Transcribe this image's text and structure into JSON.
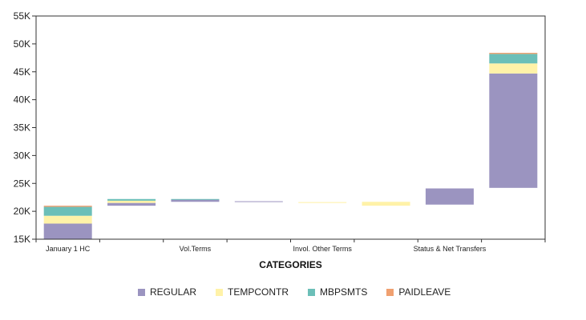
{
  "chart_data": {
    "type": "bar",
    "subtype": "waterfall-stacked",
    "xlabel": "CATEGORIES",
    "ylabel": "",
    "ylim": [
      15000,
      55000
    ],
    "yticks": [
      "15K",
      "20K",
      "25K",
      "30K",
      "35K",
      "40K",
      "45K",
      "50K",
      "55K"
    ],
    "ytick_values": [
      15000,
      20000,
      25000,
      30000,
      35000,
      40000,
      45000,
      50000,
      55000
    ],
    "grid": false,
    "legend_position": "bottom",
    "x_tick_labels": [
      {
        "text": "January 1 HC",
        "at_category": 0
      },
      {
        "text": "Vol.Terms",
        "at_category": 2
      },
      {
        "text": "Invol. Other Terms",
        "at_category": 4
      },
      {
        "text": "Status & Net Transfers",
        "at_category": 6
      }
    ],
    "category_count": 8,
    "series": [
      {
        "name": "REGULAR",
        "color": "#9b94c0"
      },
      {
        "name": "TEMPCONTR",
        "color": "#fff2a8"
      },
      {
        "name": "MBPSMTS",
        "color": "#6cbfb8"
      },
      {
        "name": "PAIDLEAVE",
        "color": "#f0a070"
      }
    ],
    "bars": [
      {
        "segments": [
          {
            "series": "REGULAR",
            "from": 15000,
            "to": 17800
          },
          {
            "series": "TEMPCONTR",
            "from": 17800,
            "to": 19200
          },
          {
            "series": "MBPSMTS",
            "from": 19200,
            "to": 20800
          },
          {
            "series": "PAIDLEAVE",
            "from": 20800,
            "to": 21000
          }
        ]
      },
      {
        "segments": [
          {
            "series": "REGULAR",
            "from": 21000,
            "to": 21500
          },
          {
            "series": "TEMPCONTR",
            "from": 21500,
            "to": 21900
          },
          {
            "series": "MBPSMTS",
            "from": 21900,
            "to": 22200
          }
        ]
      },
      {
        "segments": [
          {
            "series": "REGULAR",
            "from": 21700,
            "to": 22100
          },
          {
            "series": "MBPSMTS",
            "from": 22100,
            "to": 22200
          }
        ]
      },
      {
        "segments": [
          {
            "series": "REGULAR",
            "from": 21700,
            "to": 21800
          }
        ]
      },
      {
        "segments": [
          {
            "series": "TEMPCONTR",
            "from": 21500,
            "to": 21650
          }
        ]
      },
      {
        "segments": [
          {
            "series": "TEMPCONTR",
            "from": 21000,
            "to": 21700
          }
        ]
      },
      {
        "segments": [
          {
            "series": "REGULAR",
            "from": 21200,
            "to": 24100
          }
        ]
      },
      {
        "segments": [
          {
            "series": "REGULAR",
            "from": 24200,
            "to": 44700
          },
          {
            "series": "TEMPCONTR",
            "from": 44700,
            "to": 46500
          },
          {
            "series": "MBPSMTS",
            "from": 46500,
            "to": 48200
          },
          {
            "series": "PAIDLEAVE",
            "from": 48200,
            "to": 48400
          }
        ]
      }
    ]
  }
}
